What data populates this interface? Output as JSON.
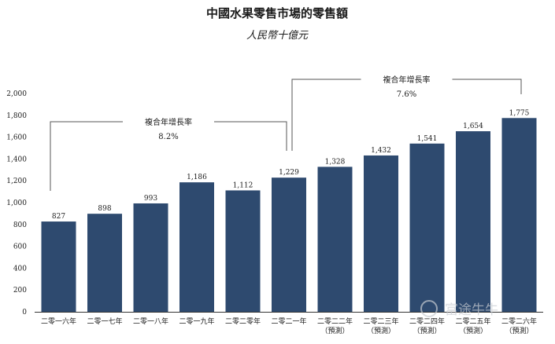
{
  "chart_data": {
    "type": "bar",
    "title": "中國水果零售市場的零售額",
    "subtitle": "人民幣十億元",
    "categories": [
      [
        "二零一六年"
      ],
      [
        "二零一七年"
      ],
      [
        "二零一八年"
      ],
      [
        "二零一九年"
      ],
      [
        "二零二零年"
      ],
      [
        "二零二一年"
      ],
      [
        "二零二二年",
        "（預測）"
      ],
      [
        "二零二三年",
        "（預測）"
      ],
      [
        "二零二四年",
        "（預測）"
      ],
      [
        "二零二五年",
        "（預測）"
      ],
      [
        "二零二六年",
        "（預測）"
      ]
    ],
    "values": [
      827,
      898,
      993,
      1186,
      1112,
      1229,
      1328,
      1432,
      1541,
      1654,
      1775
    ],
    "value_labels": [
      "827",
      "898",
      "993",
      "1,186",
      "1,112",
      "1,229",
      "1,328",
      "1,432",
      "1,541",
      "1,654",
      "1,775"
    ],
    "ylim": [
      0,
      2000
    ],
    "yticks": [
      "0",
      "200",
      "400",
      "600",
      "800",
      "1,000",
      "1,200",
      "1,400",
      "1,600",
      "1,800",
      "2,000"
    ],
    "ytick_values": [
      0,
      200,
      400,
      600,
      800,
      1000,
      1200,
      1400,
      1600,
      1800,
      2000
    ],
    "xlabel": "",
    "ylabel": "",
    "bar_color": "#2e4a6f",
    "grid": false,
    "annotations": [
      {
        "label": "複合年增長率",
        "value": "8.2%",
        "from_index": 0,
        "to_index": 5
      },
      {
        "label": "複合年增長率",
        "value": "7.6%",
        "from_index": 5,
        "to_index": 10
      }
    ]
  },
  "watermark": "富途牛牛"
}
